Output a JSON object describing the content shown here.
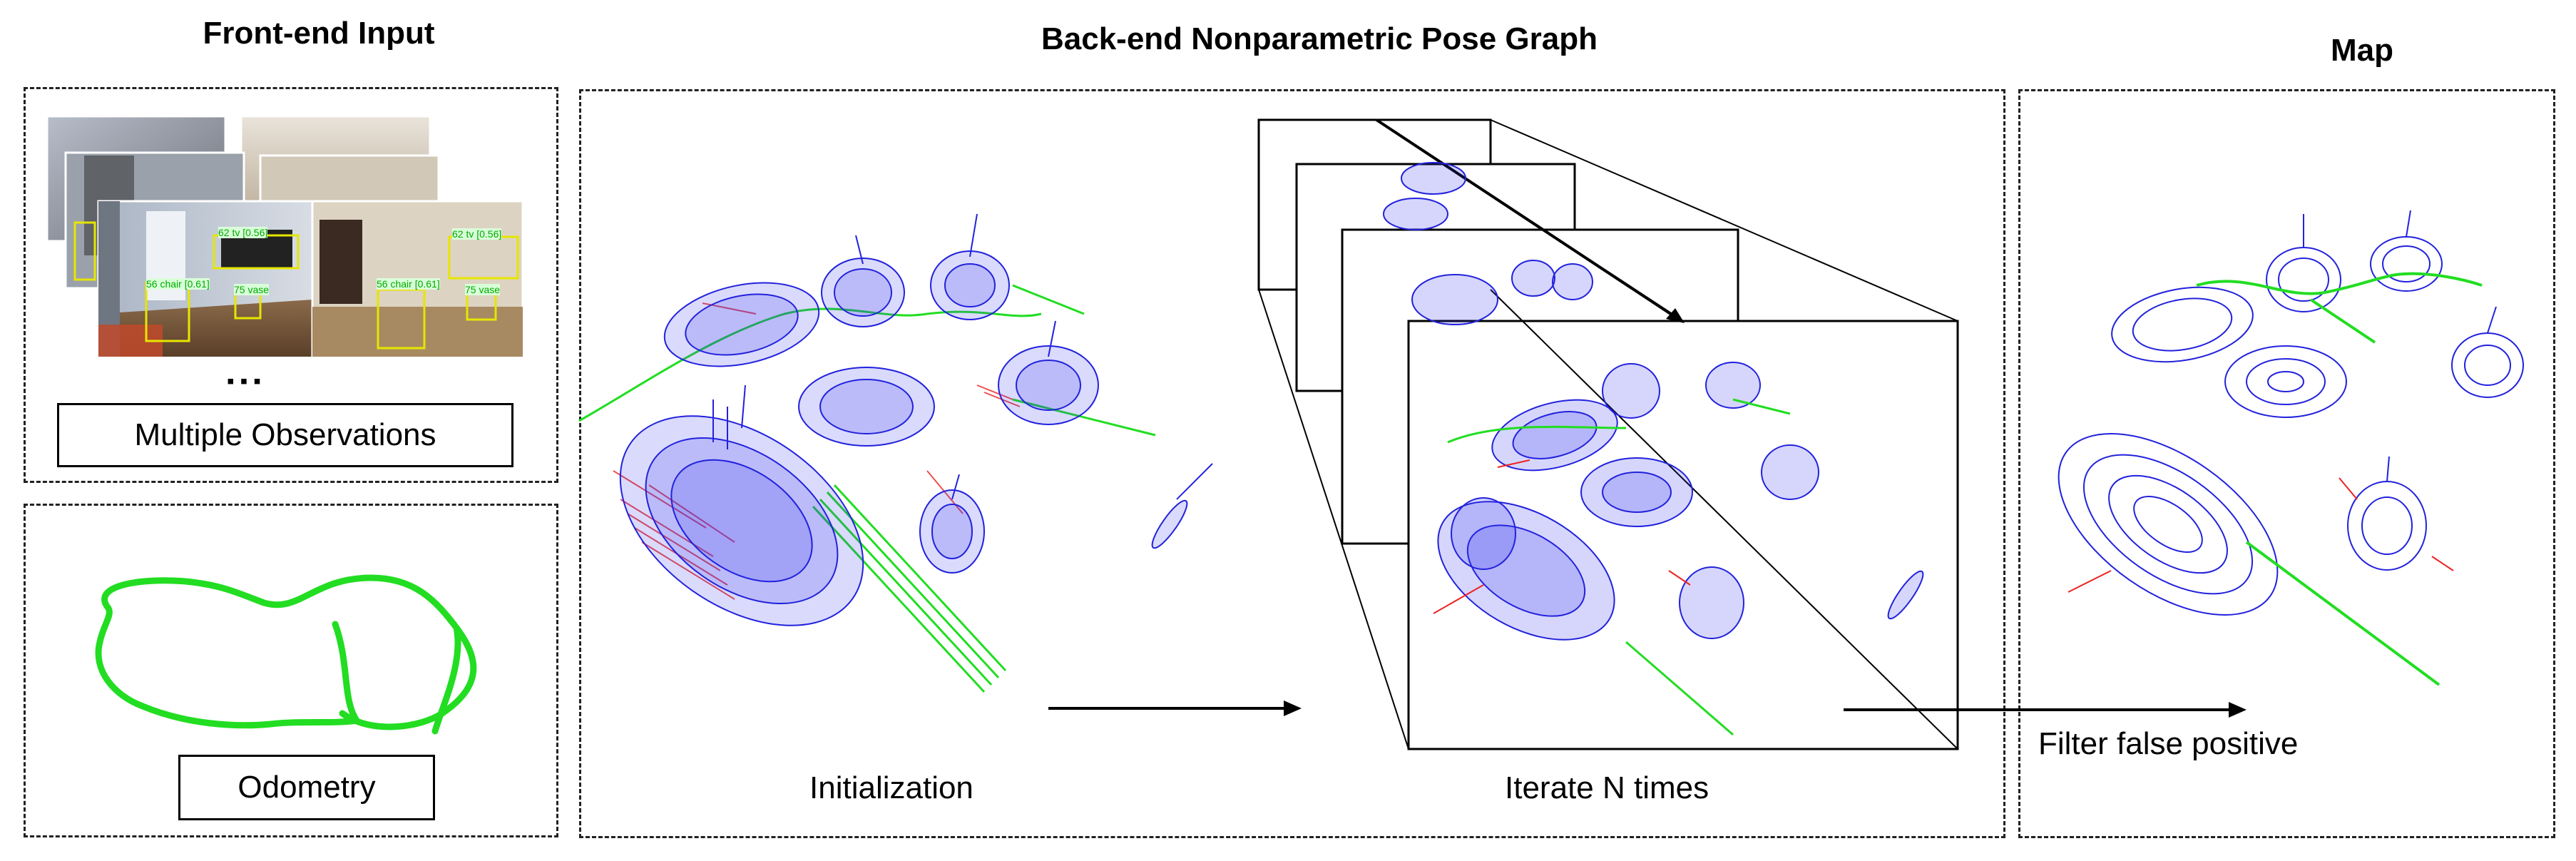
{
  "titles": {
    "frontend": "Front-end Input",
    "backend": "Back-end Nonparametric Pose Graph",
    "map": "Map"
  },
  "labels": {
    "observations": "Multiple Observations",
    "ellipsis": "▪▪▪",
    "odometry": "Odometry",
    "initialization": "Initialization",
    "iterate": "Iterate N times",
    "filter": "Filter false positive"
  },
  "detections": {
    "frame1_tv": "62 tv [0.56]",
    "frame1_chair": "56 chair [0.61]",
    "frame1_vase": "75 vase",
    "frame2_tv": "62 tv [0.56]",
    "frame2_chair": "56 chair [0.61]",
    "frame2_vase": "75 vase"
  },
  "colors": {
    "ellipsoid": "#2222dd",
    "trajectory": "#22dd22",
    "axis_red": "#ee2222",
    "detect_box": "#e6e600",
    "detect_text": "#00dd00"
  }
}
